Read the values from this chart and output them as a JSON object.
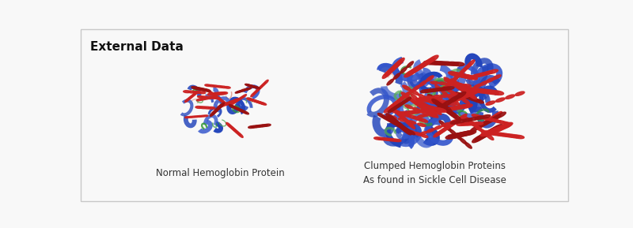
{
  "title": "External Data",
  "label_normal": "Normal Hemoglobin Protein",
  "label_clumped_line1": "Clumped Hemoglobin Proteins",
  "label_clumped_line2": "As found in Sickle Cell Disease",
  "panel_bg": "#f8f8f8",
  "title_fontsize": 11,
  "label_fontsize": 8.5,
  "border_color": "#c8c8c8",
  "red": "#cc2222",
  "darkred": "#991111",
  "blue": "#2244bb",
  "lightblue": "#3355cc",
  "green": "#339933",
  "lightgreen": "#55aa55",
  "salmon": "#dd8877"
}
